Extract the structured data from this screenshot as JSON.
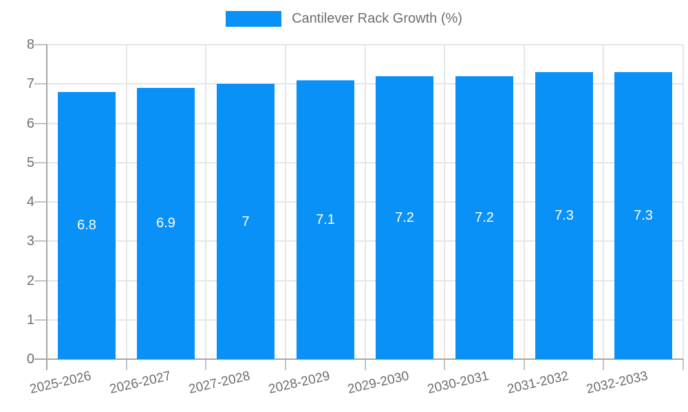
{
  "chart_data": {
    "type": "bar",
    "title": "Cantilever Rack Growth (%)",
    "categories": [
      "2025-2026",
      "2026-2027",
      "2027-2028",
      "2028-2029",
      "2029-2030",
      "2030-2031",
      "2031-2032",
      "2032-2033"
    ],
    "values": [
      6.8,
      6.9,
      7,
      7.1,
      7.2,
      7.2,
      7.3,
      7.3
    ],
    "value_labels": [
      "6.8",
      "6.9",
      "7",
      "7.1",
      "7.2",
      "7.2",
      "7.3",
      "7.3"
    ],
    "xlabel": "",
    "ylabel": "",
    "ylim": [
      0,
      8
    ],
    "yticks": [
      0,
      1,
      2,
      3,
      4,
      5,
      6,
      7,
      8
    ],
    "grid": true,
    "legend_position": "top",
    "x_label_rotation_deg": -13,
    "colors": {
      "bar": "#0991f7",
      "value_label": "#ffffff",
      "axis_text": "#6e6e6e",
      "grid_line": "#e6e6e6",
      "tick_line": "#c3c3c3",
      "axis_line": "#a6a6a6",
      "background": "#ffffff"
    }
  },
  "legend": {
    "items": [
      {
        "label": "Cantilever Rack Growth (%)",
        "color": "#0991f7"
      }
    ]
  }
}
